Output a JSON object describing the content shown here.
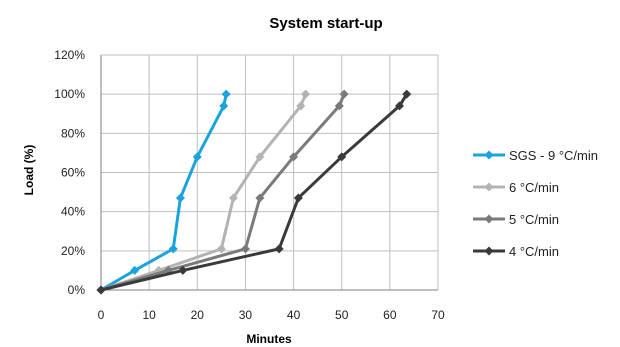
{
  "chart_data": {
    "type": "line",
    "title": "System start-up",
    "xlabel": "Minutes",
    "ylabel": "Load (%)",
    "xlim": [
      0,
      70
    ],
    "ylim": [
      0,
      120
    ],
    "x_ticks": [
      0,
      10,
      20,
      30,
      40,
      50,
      60,
      70
    ],
    "y_ticks": [
      0,
      20,
      40,
      60,
      80,
      100,
      120
    ],
    "x_tick_labels": [
      "0",
      "10",
      "20",
      "30",
      "40",
      "50",
      "60",
      "70"
    ],
    "y_tick_labels": [
      "0%",
      "20%",
      "40%",
      "60%",
      "80%",
      "100%",
      "120%"
    ],
    "grid": true,
    "legend_position": "right",
    "series": [
      {
        "name": "SGS - 9 °C/min",
        "color": "#1aa3dc",
        "marker": "diamond",
        "points": [
          [
            0,
            0
          ],
          [
            7,
            10
          ],
          [
            15,
            21
          ],
          [
            16.5,
            47
          ],
          [
            20,
            68
          ],
          [
            25.5,
            94
          ],
          [
            26,
            100
          ]
        ]
      },
      {
        "name": "6 °C/min",
        "color": "#b3b3b3",
        "marker": "diamond",
        "points": [
          [
            0,
            0
          ],
          [
            12,
            10
          ],
          [
            25,
            21
          ],
          [
            27.5,
            47
          ],
          [
            33,
            68
          ],
          [
            41.5,
            94
          ],
          [
            42.5,
            100
          ]
        ]
      },
      {
        "name": "5 °C/min",
        "color": "#7a7a7a",
        "marker": "diamond",
        "points": [
          [
            0,
            0
          ],
          [
            14,
            10
          ],
          [
            30,
            21
          ],
          [
            33,
            47
          ],
          [
            40,
            68
          ],
          [
            49.5,
            94
          ],
          [
            50.5,
            100
          ]
        ]
      },
      {
        "name": "4 °C/min",
        "color": "#3a3a3a",
        "marker": "diamond",
        "points": [
          [
            0,
            0
          ],
          [
            17,
            10
          ],
          [
            37,
            21
          ],
          [
            41,
            47
          ],
          [
            50,
            68
          ],
          [
            62,
            94
          ],
          [
            63.5,
            100
          ]
        ]
      }
    ]
  }
}
